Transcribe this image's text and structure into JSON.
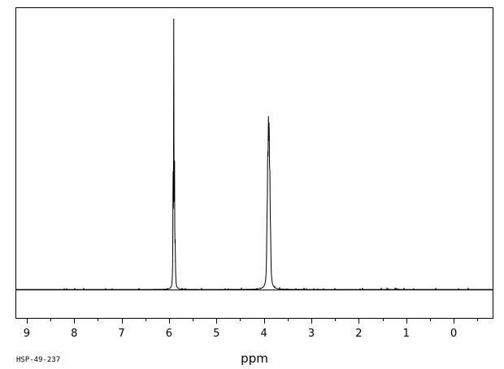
{
  "chart_data": {
    "type": "line",
    "title": "",
    "xlabel": "ppm",
    "ylabel": "",
    "sample_id": "HSP-49-237",
    "x_axis": {
      "direction": "reversed",
      "xlim": [
        9.22,
        -0.82
      ],
      "major_ticks": [
        9,
        8,
        7,
        6,
        5,
        4,
        3,
        2,
        1,
        0
      ],
      "tick_labels": [
        "9",
        "8",
        "7",
        "6",
        "5",
        "4",
        "3",
        "2",
        "1",
        "0"
      ],
      "minor_step": 0.5
    },
    "y_axis": {
      "ylim": [
        -0.11,
        1.0
      ],
      "visible": false
    },
    "grid": false,
    "legend": "none",
    "series": [
      {
        "peaks": [
          {
            "x": 5.915,
            "height": 0.43,
            "width": 0.004
          },
          {
            "x": 5.9,
            "height": 1.0,
            "width": 0.004
          },
          {
            "x": 5.885,
            "height": 0.49,
            "width": 0.004
          },
          {
            "x": 5.87,
            "height": 0.14,
            "width": 0.006
          },
          {
            "x": 3.935,
            "height": 0.17,
            "width": 0.008
          },
          {
            "x": 3.92,
            "height": 0.36,
            "width": 0.008
          },
          {
            "x": 3.905,
            "height": 0.46,
            "width": 0.008
          },
          {
            "x": 3.89,
            "height": 0.45,
            "width": 0.008
          },
          {
            "x": 3.875,
            "height": 0.3,
            "width": 0.008
          },
          {
            "x": 3.86,
            "height": 0.12,
            "width": 0.008
          }
        ]
      }
    ],
    "colors": {
      "line": "#000000",
      "frame": "#000000",
      "background": "#ffffff"
    }
  }
}
